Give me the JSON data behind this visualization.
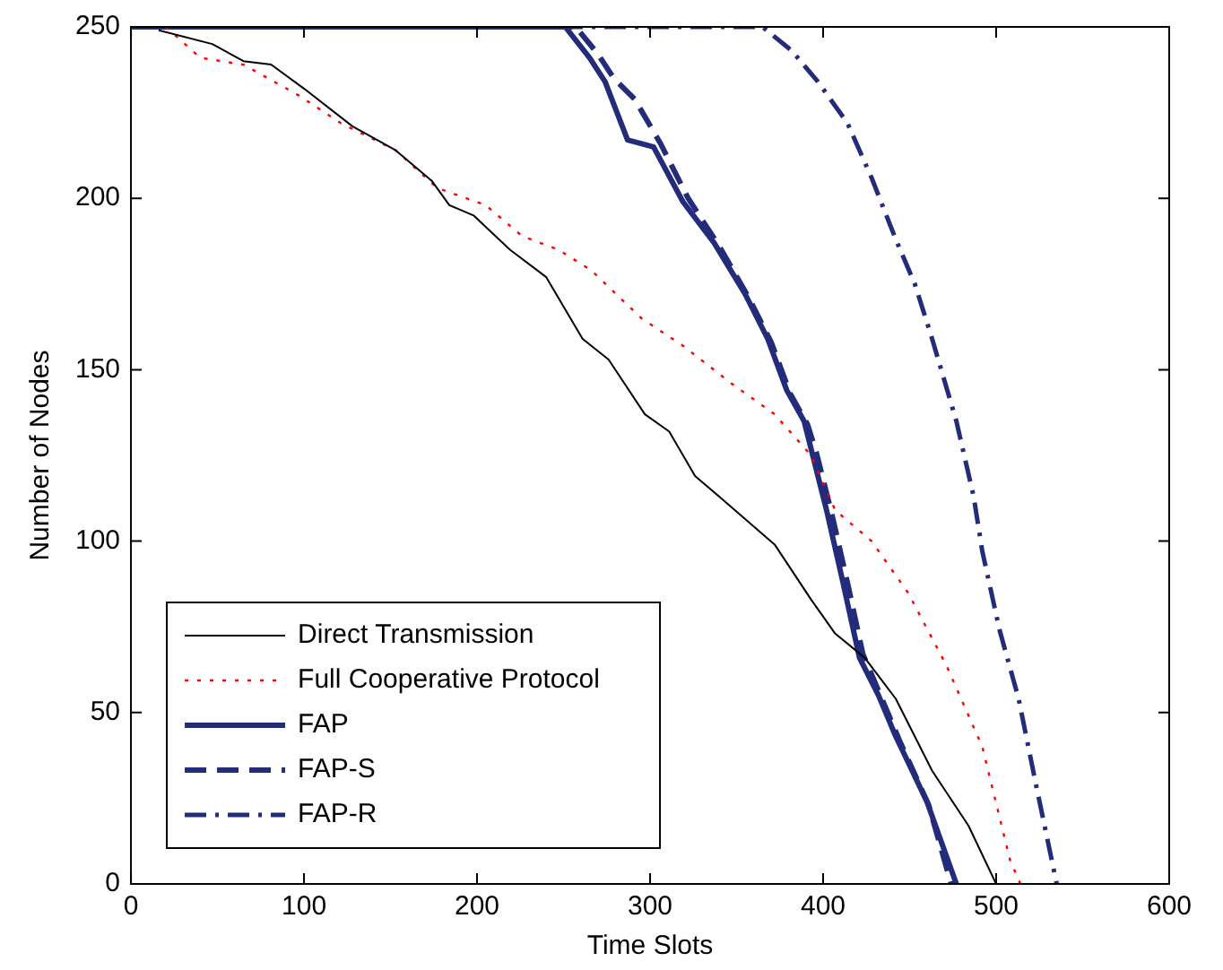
{
  "chart_data": {
    "type": "line",
    "xlabel": "Time Slots",
    "ylabel": "Number of Nodes",
    "xlim": [
      0,
      600
    ],
    "ylim": [
      0,
      250
    ],
    "xticks": [
      0,
      100,
      200,
      300,
      400,
      500,
      600
    ],
    "yticks": [
      0,
      50,
      100,
      150,
      200,
      250
    ],
    "grid": false,
    "legend": "bottom left",
    "marker": "none",
    "series": [
      {
        "name": "Direct Transmission",
        "color": "#000000",
        "line_style": "solid",
        "x": [
          16,
          47,
          65,
          81,
          100,
          128,
          153,
          174,
          184,
          198,
          219,
          240,
          261,
          276,
          297,
          311,
          326,
          340,
          372,
          393,
          407,
          424,
          442,
          463,
          484,
          500
        ],
        "values": [
          249,
          245,
          240,
          239,
          232,
          221,
          214,
          205,
          198,
          195,
          185,
          177,
          159,
          153,
          137,
          132,
          119,
          113,
          99,
          83,
          73,
          66,
          54,
          33,
          17,
          0
        ]
      },
      {
        "name": "Full Cooperative Protocol",
        "color": "#ff0000",
        "line_style": "dotted",
        "x": [
          20,
          29,
          40,
          65,
          97,
          121,
          153,
          177,
          205,
          226,
          247,
          266,
          295,
          319,
          347,
          372,
          393,
          407,
          428,
          449,
          471,
          492,
          508,
          514
        ],
        "values": [
          250,
          246,
          241,
          239,
          230,
          222,
          214,
          203,
          198,
          189,
          185,
          179,
          165,
          157,
          146,
          137,
          125,
          109,
          100,
          85,
          64,
          40,
          7,
          0
        ]
      },
      {
        "name": "FAP",
        "color": "#232c7a",
        "line_style": "solid",
        "x": [
          0,
          251,
          265,
          274,
          287,
          302,
          319,
          337,
          355,
          368,
          379,
          389,
          393,
          402,
          411,
          421,
          432,
          442,
          460,
          477
        ],
        "values": [
          250,
          250,
          241,
          234,
          217,
          215,
          199,
          187,
          172,
          159,
          144,
          135,
          127,
          109,
          89,
          66,
          55,
          43,
          24,
          0
        ]
      },
      {
        "name": "FAP-S",
        "color": "#232c7a",
        "line_style": "dashed",
        "x": [
          0,
          257,
          270,
          279,
          291,
          306,
          322,
          340,
          357,
          370,
          381,
          391,
          396,
          405,
          414,
          423,
          434,
          444,
          461,
          474
        ],
        "values": [
          250,
          250,
          242,
          235,
          229,
          216,
          200,
          186,
          171,
          158,
          143,
          134,
          126,
          108,
          88,
          67,
          54,
          42,
          23,
          0
        ]
      },
      {
        "name": "FAP-R",
        "color": "#232c7a",
        "line_style": "dashdot",
        "x": [
          0,
          365,
          382,
          397,
          414,
          428,
          442,
          453,
          463,
          477,
          487,
          492,
          502,
          513,
          523,
          535
        ],
        "values": [
          250,
          250,
          243,
          234,
          222,
          206,
          188,
          175,
          159,
          135,
          113,
          97,
          74,
          54,
          29,
          0
        ]
      }
    ]
  }
}
